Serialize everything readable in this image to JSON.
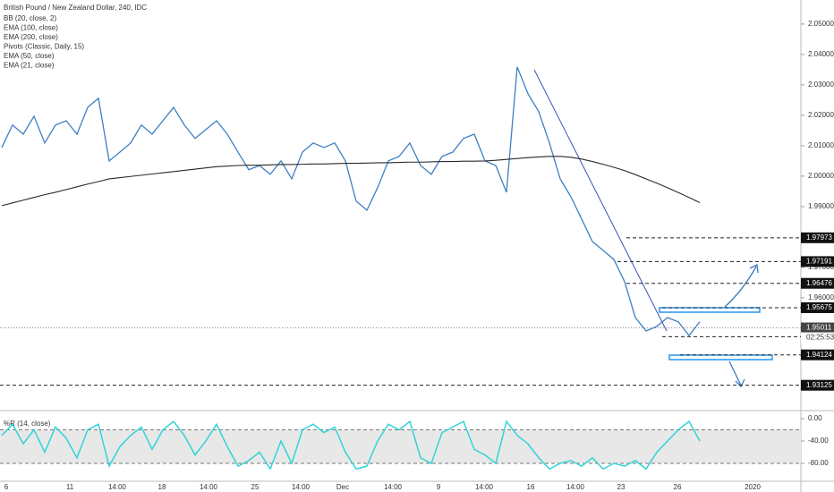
{
  "chart_data": {
    "type": "line",
    "title": "British Pound / New Zealand Dollar, 240, IDC",
    "indicators": [
      "BB (20, close, 2)",
      "EMA (100, close)",
      "EMA (200, close)",
      "Pivots (Classic, Daily, 15)",
      "EMA (50, close)",
      "EMA (21, close)"
    ],
    "xtick_labels": [
      "6",
      "11",
      "14:00",
      "18",
      "14:00",
      "25",
      "14:00",
      "Dec",
      "14:00",
      "9",
      "14:00",
      "16",
      "14:00",
      "23",
      "26",
      "2020"
    ],
    "series": [
      {
        "color": "#3d7fc1",
        "values": [
          2.0094,
          2.0168,
          2.0138,
          2.0197,
          2.0109,
          2.0168,
          2.0182,
          2.0138,
          2.0226,
          2.0256,
          2.005,
          2.0079,
          2.0109,
          2.0168,
          2.0138,
          2.0182,
          2.0226,
          2.0168,
          2.0124,
          2.0153,
          2.0182,
          2.0138,
          2.0079,
          2.0021,
          2.0035,
          2.0006,
          2.005,
          1.9991,
          2.0079,
          2.0109,
          2.0094,
          2.0109,
          2.005,
          1.9918,
          1.9888,
          1.9962,
          2.005,
          2.0065,
          2.0109,
          2.0035,
          2.0006,
          2.0065,
          2.0079,
          2.0124,
          2.0138,
          2.005,
          2.0035,
          1.9947,
          2.0359,
          2.0271,
          2.0212,
          2.0109,
          1.9991,
          1.9932,
          1.9859,
          1.9785,
          1.9756,
          1.9726,
          1.9653,
          1.9535,
          1.9491,
          1.9506,
          1.9535,
          1.9521,
          1.9476,
          1.9521
        ]
      },
      {
        "color": "#2a2a2a",
        "values": [
          1.9903,
          1.9912,
          1.9921,
          1.993,
          1.9939,
          1.9947,
          1.9956,
          1.9965,
          1.9974,
          1.9982,
          1.9991,
          1.9995,
          1.9999,
          2.0003,
          2.0007,
          2.0011,
          2.0015,
          2.0019,
          2.0023,
          2.0027,
          2.0031,
          2.0033,
          2.0035,
          2.0036,
          2.0036,
          2.0037,
          2.0038,
          2.0038,
          2.0039,
          2.004,
          2.004,
          2.0041,
          2.0042,
          2.0042,
          2.0043,
          2.0044,
          2.0044,
          2.0045,
          2.0046,
          2.0046,
          2.0047,
          2.0048,
          2.0048,
          2.0049,
          2.0049,
          2.005,
          2.0052,
          2.0055,
          2.0058,
          2.0061,
          2.0063,
          2.0065,
          2.0065,
          2.0062,
          2.0056,
          2.0048,
          2.0039,
          2.0029,
          2.0018,
          2.0005,
          1.9991,
          1.9977,
          1.9962,
          1.9946,
          1.993,
          1.9913
        ]
      }
    ],
    "ylim": [
      1.9241,
      2.0579
    ],
    "yticks": [
      {
        "value": 2.05,
        "label": "2.05000"
      },
      {
        "value": 2.04,
        "label": "2.04000"
      },
      {
        "value": 2.03,
        "label": "2.03000"
      },
      {
        "value": 2.02,
        "label": "2.02000"
      },
      {
        "value": 2.01,
        "label": "2.01000"
      },
      {
        "value": 2.0,
        "label": "2.00000"
      },
      {
        "value": 1.99,
        "label": "1.99000"
      },
      {
        "value": 1.97,
        "label": "1.97000"
      },
      {
        "value": 1.96,
        "label": "1.96000"
      }
    ],
    "levels": [
      1.97973,
      1.97191,
      1.96476,
      1.95675,
      1.94722,
      1.94124,
      1.93125
    ],
    "current_price": 1.95011,
    "countdown": "02:25:53",
    "oscillator": {
      "label": "%R (14, close)",
      "color": "#2fd4d8",
      "values": [
        -30,
        -10,
        -45,
        -20,
        -60,
        -15,
        -35,
        -70,
        -20,
        -10,
        -85,
        -50,
        -30,
        -15,
        -55,
        -20,
        -5,
        -30,
        -65,
        -40,
        -10,
        -50,
        -85,
        -75,
        -60,
        -90,
        -40,
        -80,
        -20,
        -10,
        -25,
        -15,
        -60,
        -90,
        -85,
        -40,
        -10,
        -20,
        -5,
        -70,
        -80,
        -25,
        -15,
        -5,
        -55,
        -65,
        -80,
        -5,
        -30,
        -45,
        -70,
        -90,
        -80,
        -75,
        -85,
        -70,
        -90,
        -80,
        -85,
        -75,
        -90,
        -60,
        -40,
        -20,
        -5,
        -40
      ],
      "ylim": [
        -115.2,
        12.8
      ],
      "yticks": [
        {
          "value": 0,
          "label": "0.00"
        },
        {
          "value": -40,
          "label": "-40.00"
        },
        {
          "value": -80,
          "label": "-80.00"
        }
      ],
      "bands": [
        -20,
        -80
      ]
    }
  }
}
